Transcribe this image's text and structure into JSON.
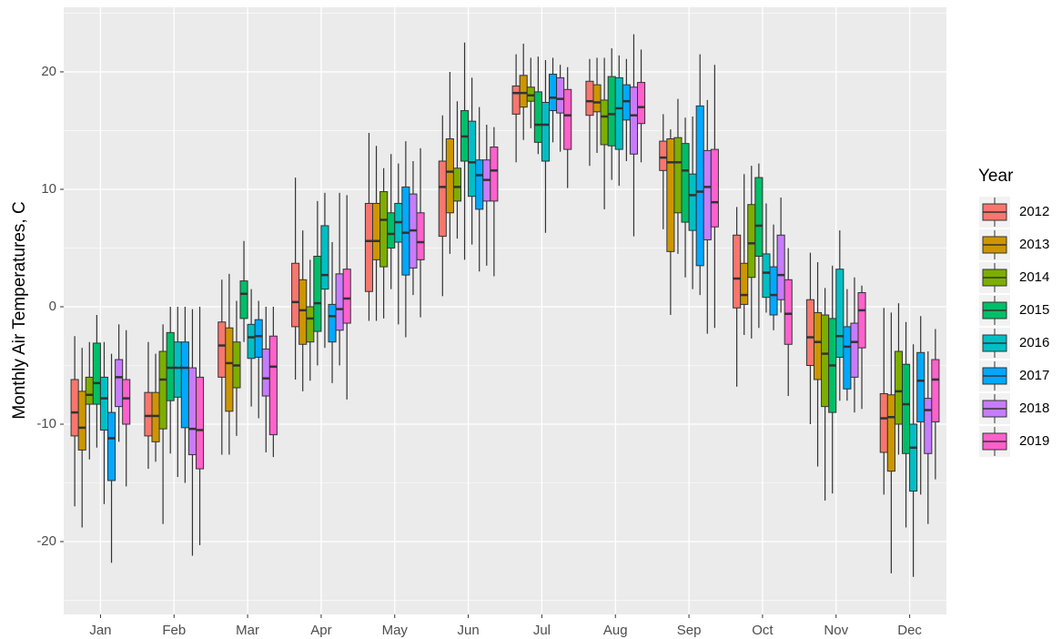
{
  "chart_data": {
    "type": "boxplot",
    "y_label": "Monthly Air Temperatures, C",
    "legend_title": "Year",
    "legend_position": "right",
    "grid": true,
    "categories": [
      "Jan",
      "Feb",
      "Mar",
      "Apr",
      "May",
      "Jun",
      "Jul",
      "Aug",
      "Sep",
      "Oct",
      "Nov",
      "Dec"
    ],
    "ylim": [
      -26.2,
      25.5
    ],
    "yticks": [
      -20,
      -10,
      0,
      10,
      20
    ],
    "series": [
      {
        "name": "2012",
        "color": "#F8766D",
        "values": [
          [
            -17,
            -11,
            -9,
            -6.2,
            -2.5
          ],
          [
            -13.8,
            -11,
            -9.3,
            -7.3,
            -3
          ],
          [
            -12.6,
            -6,
            -3.3,
            -1.3,
            2.3
          ],
          [
            -6.2,
            -1.7,
            0.4,
            3.7,
            11
          ],
          [
            -1.2,
            1.3,
            5.6,
            8.8,
            14.8
          ],
          [
            0.9,
            6,
            10.2,
            12.4,
            16.3
          ],
          [
            12.3,
            16.4,
            18.2,
            18.8,
            21.5
          ],
          [
            12,
            16.3,
            17.5,
            19.2,
            21.1
          ],
          [
            6.6,
            11.6,
            12.7,
            14.1,
            16.4
          ],
          [
            -6.8,
            -0.1,
            2.4,
            6.1,
            8.5
          ],
          [
            -10,
            -5,
            -2.6,
            0.6,
            4.6
          ],
          [
            -16,
            -12.4,
            -9.5,
            -7.4,
            -0.1
          ]
        ]
      },
      {
        "name": "2013",
        "color": "#CD9600",
        "values": [
          [
            -18.8,
            -12.2,
            -10.3,
            -7.2,
            -3.5
          ],
          [
            -13.2,
            -11.5,
            -9.3,
            -7.3,
            -4
          ],
          [
            -12.6,
            -8.9,
            -4.8,
            -1.8,
            2.8
          ],
          [
            -7.2,
            -3.2,
            -0.3,
            2.3,
            6.5
          ],
          [
            -1.2,
            4,
            5.6,
            8.8,
            13.7
          ],
          [
            4.5,
            8,
            11.5,
            14.3,
            20
          ],
          [
            14.2,
            17,
            18.2,
            19.7,
            22.4
          ],
          [
            13.1,
            16.6,
            17.4,
            18.9,
            21.2
          ],
          [
            -0.7,
            4.7,
            12.3,
            14.3,
            15.1
          ],
          [
            -2.4,
            0.2,
            1,
            3.7,
            11.3
          ],
          [
            -13.6,
            -6.2,
            -3,
            -0.5,
            3.8
          ],
          [
            -22.7,
            -14,
            -9.4,
            -7.5,
            -0.5
          ]
        ]
      },
      {
        "name": "2014",
        "color": "#7CAE00",
        "values": [
          [
            -13,
            -8.3,
            -7.5,
            -6,
            -3
          ],
          [
            -18.5,
            -10.4,
            -6.2,
            -3.8,
            -1.5
          ],
          [
            -11,
            -6.9,
            -5,
            -3,
            0.5
          ],
          [
            -6.3,
            -3,
            -1,
            0,
            4
          ],
          [
            -1,
            3.4,
            7.4,
            9.8,
            11.8
          ],
          [
            5.8,
            9,
            10.2,
            11.8,
            17.5
          ],
          [
            15.2,
            17.5,
            18,
            18.7,
            21.2
          ],
          [
            8.3,
            13.8,
            16.2,
            17.6,
            21.2
          ],
          [
            4.5,
            8,
            12.3,
            14.4,
            17.7
          ],
          [
            -2.7,
            2.5,
            5.4,
            8.7,
            12
          ],
          [
            -16.5,
            -8.5,
            -4,
            -0.7,
            1.6
          ],
          [
            -12.6,
            -10,
            -7.2,
            -3.8,
            0.3
          ]
        ]
      },
      {
        "name": "2015",
        "color": "#00BE67",
        "values": [
          [
            -12,
            -8.3,
            -6.5,
            -3.1,
            -0.7
          ],
          [
            -12.5,
            -8,
            -5.2,
            -2.2,
            0
          ],
          [
            -3,
            -1,
            1.1,
            2.2,
            5.6
          ],
          [
            -5,
            -2.1,
            0.3,
            4.3,
            9
          ],
          [
            1.5,
            5,
            6.2,
            8,
            13
          ],
          [
            4,
            12.4,
            14.5,
            16.7,
            22.5
          ],
          [
            13,
            14,
            15.5,
            18.3,
            21.3
          ],
          [
            10.8,
            13.7,
            16.4,
            19.6,
            22
          ],
          [
            2.5,
            7.2,
            11.6,
            13.9,
            16.1
          ],
          [
            -1.8,
            4.3,
            6.9,
            11,
            12.2
          ],
          [
            -15.9,
            -9,
            -5,
            -1,
            3.5
          ],
          [
            -18.8,
            -12.5,
            -8.3,
            -4.9,
            -1.3
          ]
        ]
      },
      {
        "name": "2016",
        "color": "#00BFC4",
        "values": [
          [
            -16.8,
            -10.5,
            -7.8,
            -6,
            -3
          ],
          [
            -14.5,
            -7.7,
            -5.2,
            -3,
            0
          ],
          [
            -8.5,
            -4.4,
            -2.6,
            -1.5,
            1.5
          ],
          [
            -3.5,
            1.5,
            2.7,
            6.9,
            9.7
          ],
          [
            -1.5,
            5.5,
            7.2,
            8.8,
            12.2
          ],
          [
            5.3,
            9.4,
            12.3,
            15.8,
            19.5
          ],
          [
            6.3,
            12.4,
            15.5,
            17.4,
            21
          ],
          [
            10.3,
            13.4,
            16.9,
            19.5,
            21.4
          ],
          [
            1.5,
            6.5,
            9.5,
            11.3,
            16.2
          ],
          [
            -0.5,
            0.8,
            2.9,
            4.5,
            8.8
          ],
          [
            -8,
            -4.3,
            -2.5,
            3.2,
            6.5
          ],
          [
            -23,
            -15.7,
            -12,
            -10,
            -3.2
          ]
        ]
      },
      {
        "name": "2017",
        "color": "#00A9FF",
        "values": [
          [
            -21.8,
            -14.8,
            -11.2,
            -9,
            -4
          ],
          [
            -15,
            -10.3,
            -5.2,
            -3,
            0
          ],
          [
            -9.5,
            -4.3,
            -2.5,
            -1.1,
            0.5
          ],
          [
            -6.5,
            -3,
            -0.8,
            0.2,
            5.5
          ],
          [
            -2.6,
            2.7,
            6.3,
            10.2,
            14.1
          ],
          [
            3,
            8.3,
            11.2,
            12.5,
            17
          ],
          [
            14,
            16.7,
            17.8,
            19.8,
            21.2
          ],
          [
            12.4,
            15.9,
            17.5,
            18.9,
            21.1
          ],
          [
            1,
            3.5,
            9.8,
            17.1,
            21.5
          ],
          [
            -2,
            -0.7,
            1,
            3.4,
            7
          ],
          [
            -8,
            -7,
            -3.4,
            -1.7,
            1.5
          ],
          [
            -16,
            -9.8,
            -6.3,
            -3.9,
            -0.8
          ]
        ]
      },
      {
        "name": "2018",
        "color": "#C77CFF",
        "values": [
          [
            -11.5,
            -8.5,
            -6,
            -4.5,
            -1.5
          ],
          [
            -21.2,
            -12.6,
            -10.4,
            -5.2,
            -0.2
          ],
          [
            -12.4,
            -7.6,
            -6.1,
            -3.6,
            0
          ],
          [
            -5,
            -2,
            -0.2,
            2.8,
            9.7
          ],
          [
            1,
            3.3,
            6.5,
            9.6,
            12.4
          ],
          [
            3.5,
            9,
            10.8,
            12.5,
            15.5
          ],
          [
            13.2,
            16.5,
            17.7,
            19.5,
            20.6
          ],
          [
            6,
            13,
            16.3,
            18.7,
            23.2
          ],
          [
            -2.3,
            5.7,
            10.2,
            13.3,
            17.6
          ],
          [
            -0.5,
            0.6,
            2.7,
            6.1,
            9.3
          ],
          [
            -9,
            -6,
            -3,
            -1.4,
            2.5
          ],
          [
            -18.5,
            -12.5,
            -8.8,
            -7.8,
            -3.8
          ]
        ]
      },
      {
        "name": "2019",
        "color": "#FF61CC",
        "values": [
          [
            -15.3,
            -10,
            -7.8,
            -6.2,
            -2
          ],
          [
            -20.3,
            -13.8,
            -10.5,
            -6,
            0
          ],
          [
            -12.8,
            -10.9,
            -5.1,
            -2.5,
            0
          ],
          [
            -7.9,
            -1.4,
            0.7,
            3.2,
            9.5
          ],
          [
            -0.9,
            4,
            5.5,
            8,
            13.5
          ],
          [
            2.6,
            9,
            11.6,
            13.6,
            15.3
          ],
          [
            10.1,
            13.4,
            16.3,
            18.5,
            20.4
          ],
          [
            12.3,
            15.6,
            17,
            19.1,
            21.9
          ],
          [
            -1.8,
            6.8,
            8.9,
            13.4,
            20.6
          ],
          [
            -7.6,
            -3.2,
            -0.6,
            2.3,
            5
          ],
          [
            -8.7,
            -3.5,
            -0.3,
            1.2,
            1.8
          ],
          [
            -14.7,
            -9.8,
            -6.2,
            -4.5,
            -1.9
          ]
        ]
      }
    ]
  }
}
